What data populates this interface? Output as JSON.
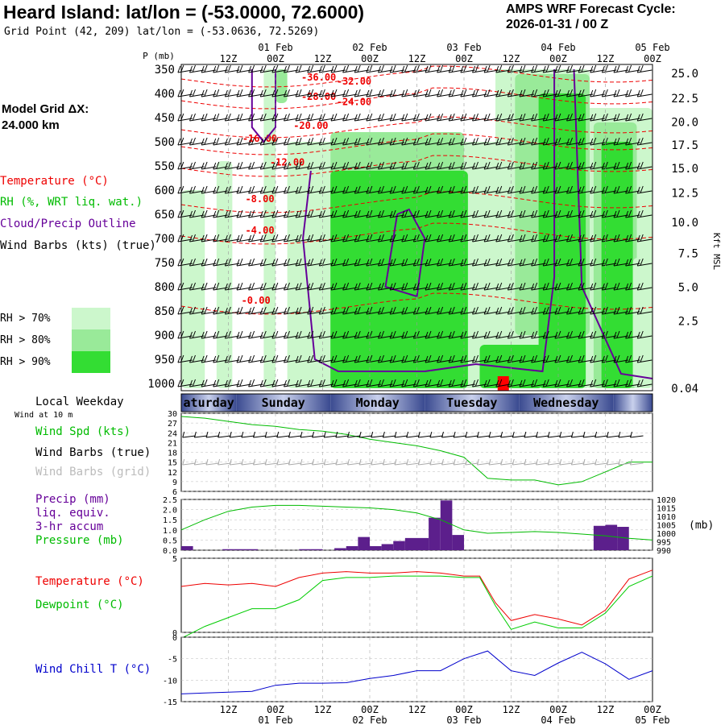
{
  "header": {
    "title": "Heard Island:  lat/lon = (-53.0000, 72.6000)",
    "grid_point": "Grid Point (42, 209) lat/lon = (-53.0636, 72.5269)",
    "cycle_label": "AMPS WRF Forecast Cycle:",
    "cycle_value": "2026-01-31 / 00  Z"
  },
  "model_grid": {
    "label": "Model Grid ΔX:",
    "value": " 24.000 km"
  },
  "legend": {
    "temperature": "Temperature (°C)",
    "rh": "RH (%, WRT liq. wat.)",
    "cloud": "Cloud/Precip Outline",
    "wind": "Wind Barbs (kts) (true)",
    "rh_levels": [
      "RH > 70%",
      "RH > 80%",
      "RH > 90%"
    ]
  },
  "colors": {
    "rh70": "#ccf7cc",
    "rh80": "#99ea99",
    "rh90": "#33dd33",
    "temp": "#ee0000",
    "cloud": "#660099",
    "precip": "#5c1f8c",
    "pressure": "#00bb00",
    "dewpoint": "#00cc00",
    "windchill": "#0000cc",
    "day_dark": "#3a4a90",
    "day_light": "#c8d0ec"
  },
  "time_axis": {
    "tick_labels": [
      "12Z",
      "00Z",
      "12Z",
      "00Z",
      "12Z",
      "00Z",
      "12Z",
      "00Z",
      "12Z",
      "00Z"
    ],
    "date_labels": [
      "01 Feb",
      "02 Feb",
      "03 Feb",
      "04 Feb",
      "05 Feb"
    ],
    "start_hour": 0,
    "end_hour": 120
  },
  "local_weekday": {
    "title": "Local Weekday",
    "subtitle": "Wind at 10 m",
    "days": [
      "aturday",
      "Sunday",
      "Monday",
      "Tuesday",
      "Wednesday"
    ]
  },
  "chart_data": [
    {
      "type": "heatmap",
      "title": "Vertical cross-section",
      "ylabel": "P (mb)",
      "ylabel_right": "Kft MSL",
      "pressure_levels": [
        350,
        400,
        450,
        500,
        550,
        600,
        650,
        700,
        750,
        800,
        850,
        900,
        950,
        1000
      ],
      "height_ticks": [
        "25.0",
        "22.5",
        "20.0",
        "17.5",
        "15.0",
        "12.5",
        "10.0",
        "7.5",
        "5.0",
        "2.5",
        "0.04"
      ],
      "height_ticks_p": [
        358,
        410,
        459,
        507,
        555,
        606,
        667,
        731,
        801,
        871,
        1010
      ],
      "temperature_labels": [
        {
          "text": "-36.00",
          "hour": 35,
          "p": 373
        },
        {
          "text": "-32.00",
          "hour": 44,
          "p": 382
        },
        {
          "text": "-28.00",
          "hour": 35,
          "p": 413
        },
        {
          "text": "-24.00",
          "hour": 44,
          "p": 424
        },
        {
          "text": "-20.00",
          "hour": 33,
          "p": 473
        },
        {
          "text": "-16.00",
          "hour": 20,
          "p": 500
        },
        {
          "text": "-12.00",
          "hour": 27,
          "p": 549
        },
        {
          "text": "-8.00",
          "hour": 20,
          "p": 625
        },
        {
          "text": "-4.00",
          "hour": 20,
          "p": 690
        },
        {
          "text": "-0.00",
          "hour": 19,
          "p": 835
        }
      ],
      "rh_regions": [
        {
          "level": 70,
          "hour0": 0,
          "hour1": 6,
          "p_top": 600,
          "p_bot": 1010
        },
        {
          "level": 70,
          "hour0": 9,
          "hour1": 13,
          "p_top": 540,
          "p_bot": 1010
        },
        {
          "level": 70,
          "hour0": 21,
          "hour1": 24,
          "p_top": 350,
          "p_bot": 1010
        },
        {
          "level": 70,
          "hour0": 27,
          "hour1": 104,
          "p_top": 500,
          "p_bot": 1010
        },
        {
          "level": 70,
          "hour0": 80,
          "hour1": 104,
          "p_top": 350,
          "p_bot": 1010
        },
        {
          "level": 70,
          "hour0": 103,
          "hour1": 120,
          "p_top": 430,
          "p_bot": 1010
        },
        {
          "level": 80,
          "hour0": 24,
          "hour1": 27,
          "p_top": 350,
          "p_bot": 420
        },
        {
          "level": 80,
          "hour0": 38,
          "hour1": 72,
          "p_top": 480,
          "p_bot": 1010
        },
        {
          "level": 80,
          "hour0": 85,
          "hour1": 104,
          "p_top": 360,
          "p_bot": 900
        },
        {
          "level": 80,
          "hour0": 105,
          "hour1": 116,
          "p_top": 460,
          "p_bot": 1010
        },
        {
          "level": 90,
          "hour0": 38,
          "hour1": 73,
          "p_top": 560,
          "p_bot": 1010
        },
        {
          "level": 90,
          "hour0": 76,
          "hour1": 92,
          "p_top": 920,
          "p_bot": 1010
        },
        {
          "level": 90,
          "hour0": 91,
          "hour1": 103,
          "p_top": 400,
          "p_bot": 1010
        },
        {
          "level": 90,
          "hour0": 107,
          "hour1": 115,
          "p_top": 500,
          "p_bot": 1010
        },
        {
          "level": 70,
          "hour0": 115,
          "hour1": 120,
          "p_top": 740,
          "p_bot": 1010
        }
      ],
      "precip_marker": {
        "hour": 82,
        "p_top": 985
      }
    },
    {
      "type": "line",
      "title": "Wind Spd (kts)",
      "series_labels": [
        "Wind Spd (kts)",
        "Wind Barbs (true)",
        "Wind Barbs (grid)"
      ],
      "ylim": [
        6,
        30
      ],
      "yticks": [
        30,
        27,
        24,
        21,
        18,
        15,
        12,
        9,
        6
      ],
      "x": [
        0,
        6,
        12,
        18,
        24,
        30,
        36,
        42,
        48,
        54,
        60,
        66,
        72,
        78,
        84,
        90,
        96,
        102,
        108,
        114,
        120
      ],
      "values": [
        29,
        28.5,
        27.5,
        26.5,
        26,
        25,
        24.5,
        23.5,
        22,
        21,
        20,
        18.5,
        16.5,
        10,
        9.5,
        9.5,
        8,
        9,
        12,
        15,
        15
      ]
    },
    {
      "type": "bar",
      "title": "Precip (mm)",
      "labels": [
        "Precip (mm)",
        "liq. equiv.",
        "3-hr accum",
        "Pressure (mb)"
      ],
      "ylim": [
        0,
        2.5
      ],
      "yticks": [
        2.5,
        2.0,
        1.5,
        1.0,
        0.5,
        0.0
      ],
      "y2lim": [
        990,
        1020
      ],
      "y2ticks": [
        1020,
        1015,
        1010,
        1005,
        1000,
        995,
        990
      ],
      "y2label": "(mb)",
      "bars": [
        {
          "hour": 1.5,
          "value": 0.2
        },
        {
          "hour": 12,
          "value": 0.05
        },
        {
          "hour": 15,
          "value": 0.05
        },
        {
          "hour": 18,
          "value": 0.05
        },
        {
          "hour": 31.5,
          "value": 0.05
        },
        {
          "hour": 34.5,
          "value": 0.05
        },
        {
          "hour": 40.5,
          "value": 0.1
        },
        {
          "hour": 43.5,
          "value": 0.2
        },
        {
          "hour": 46.5,
          "value": 0.65
        },
        {
          "hour": 49.5,
          "value": 0.2
        },
        {
          "hour": 52.5,
          "value": 0.3
        },
        {
          "hour": 55.5,
          "value": 0.45
        },
        {
          "hour": 58.5,
          "value": 0.6
        },
        {
          "hour": 61.5,
          "value": 0.6
        },
        {
          "hour": 64.5,
          "value": 1.6
        },
        {
          "hour": 67.5,
          "value": 2.45
        },
        {
          "hour": 70.5,
          "value": 0.75
        },
        {
          "hour": 106.5,
          "value": 1.2
        },
        {
          "hour": 109.5,
          "value": 1.25
        },
        {
          "hour": 112.5,
          "value": 1.15
        }
      ],
      "pressure_x": [
        0,
        6,
        12,
        18,
        24,
        30,
        36,
        42,
        48,
        54,
        60,
        66,
        72,
        78,
        84,
        90,
        96,
        102,
        108,
        114,
        120
      ],
      "pressure": [
        1002,
        1008,
        1013,
        1015.5,
        1016.5,
        1016.5,
        1016,
        1015.5,
        1015,
        1014,
        1012,
        1008,
        1002,
        1000,
        1000.5,
        1001,
        1000.5,
        999.5,
        998.5,
        997,
        996
      ]
    },
    {
      "type": "line",
      "title": "Temperature / Dewpoint",
      "series_labels": [
        "Temperature (°C)",
        "Dewpoint (°C)"
      ],
      "ylim": [
        0,
        5
      ],
      "yticks": [
        5,
        0
      ],
      "x": [
        0,
        6,
        12,
        18,
        24,
        30,
        36,
        42,
        48,
        54,
        60,
        66,
        72,
        76,
        80,
        84,
        90,
        96,
        102,
        108,
        114,
        120
      ],
      "series": [
        {
          "name": "Temperature",
          "values": [
            3.1,
            3.3,
            3.2,
            3.3,
            3.1,
            3.7,
            4.0,
            4.1,
            4.0,
            4.0,
            4.1,
            4.0,
            3.8,
            3.8,
            2.0,
            0.8,
            1.2,
            0.9,
            0.5,
            1.5,
            3.6,
            4.2
          ]
        },
        {
          "name": "Dewpoint",
          "values": [
            -0.4,
            0.4,
            1.0,
            1.6,
            1.6,
            2.2,
            3.5,
            3.7,
            3.7,
            3.8,
            3.8,
            3.8,
            3.7,
            3.7,
            1.8,
            0.2,
            0.7,
            0.3,
            0.3,
            1.3,
            3.1,
            3.8
          ]
        }
      ]
    },
    {
      "type": "line",
      "title": "Wind Chill T (°C)",
      "series_labels": [
        "Wind Chill T (°C)"
      ],
      "ylim": [
        -15,
        0
      ],
      "yticks": [
        0,
        -5,
        -10,
        -15
      ],
      "x": [
        0,
        6,
        12,
        18,
        24,
        30,
        36,
        42,
        48,
        54,
        60,
        66,
        72,
        78,
        84,
        90,
        96,
        102,
        108,
        114,
        120
      ],
      "values": [
        -13.2,
        -13.0,
        -12.8,
        -12.6,
        -11.2,
        -10.7,
        -10.7,
        -10.6,
        -9.6,
        -8.9,
        -7.8,
        -7.8,
        -5.0,
        -3.2,
        -7.8,
        -8.9,
        -6.0,
        -3.5,
        -6.2,
        -9.8,
        -7.8
      ]
    }
  ]
}
